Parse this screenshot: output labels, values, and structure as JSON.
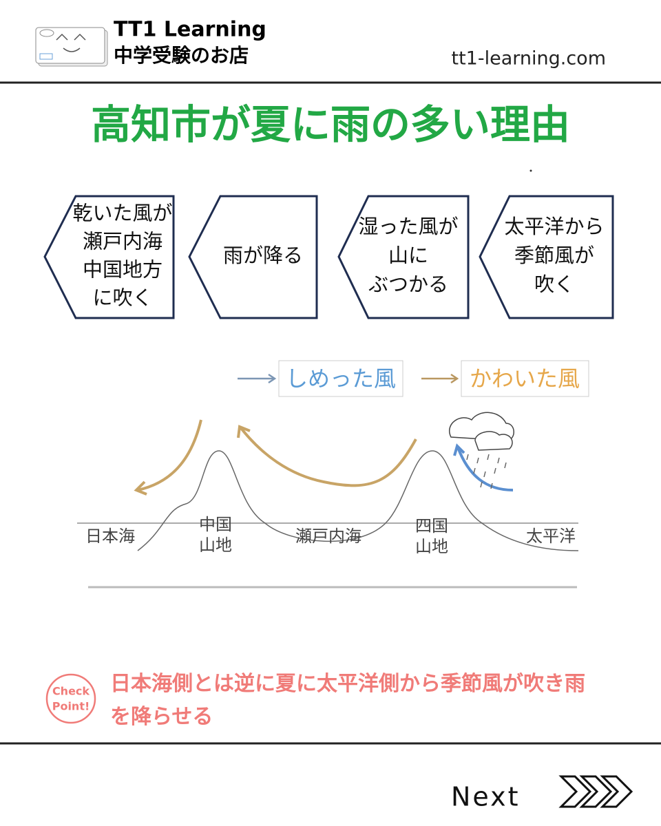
{
  "header": {
    "brand": "TT1 Learning",
    "subtitle": "中学受験のお店",
    "url": "tt1-learning.com"
  },
  "title": "高知市が夏に雨の多い理由",
  "steps": [
    {
      "lines": [
        "乾いた風が",
        "瀬戸内海",
        "中国地方",
        "に吹く"
      ]
    },
    {
      "lines": [
        "雨が降る"
      ]
    },
    {
      "lines": [
        "湿った風が",
        "山に",
        "ぶつかる"
      ]
    },
    {
      "lines": [
        "太平洋から",
        "季節風が",
        "吹く"
      ]
    }
  ],
  "legend": {
    "moist": "しめった風",
    "dry": "かわいた風"
  },
  "places": [
    {
      "lines": [
        "日本海"
      ]
    },
    {
      "lines": [
        "中国",
        "山地"
      ]
    },
    {
      "lines": [
        "瀬戸内海"
      ]
    },
    {
      "lines": [
        "四国",
        "山地"
      ]
    },
    {
      "lines": [
        "太平洋"
      ]
    }
  ],
  "checkpoint": {
    "badge": [
      "Check",
      "Point!"
    ],
    "text": "日本海側とは逆に夏に太平洋側から季節風が吹き雨を降らせる"
  },
  "footer": {
    "next": "Next"
  }
}
